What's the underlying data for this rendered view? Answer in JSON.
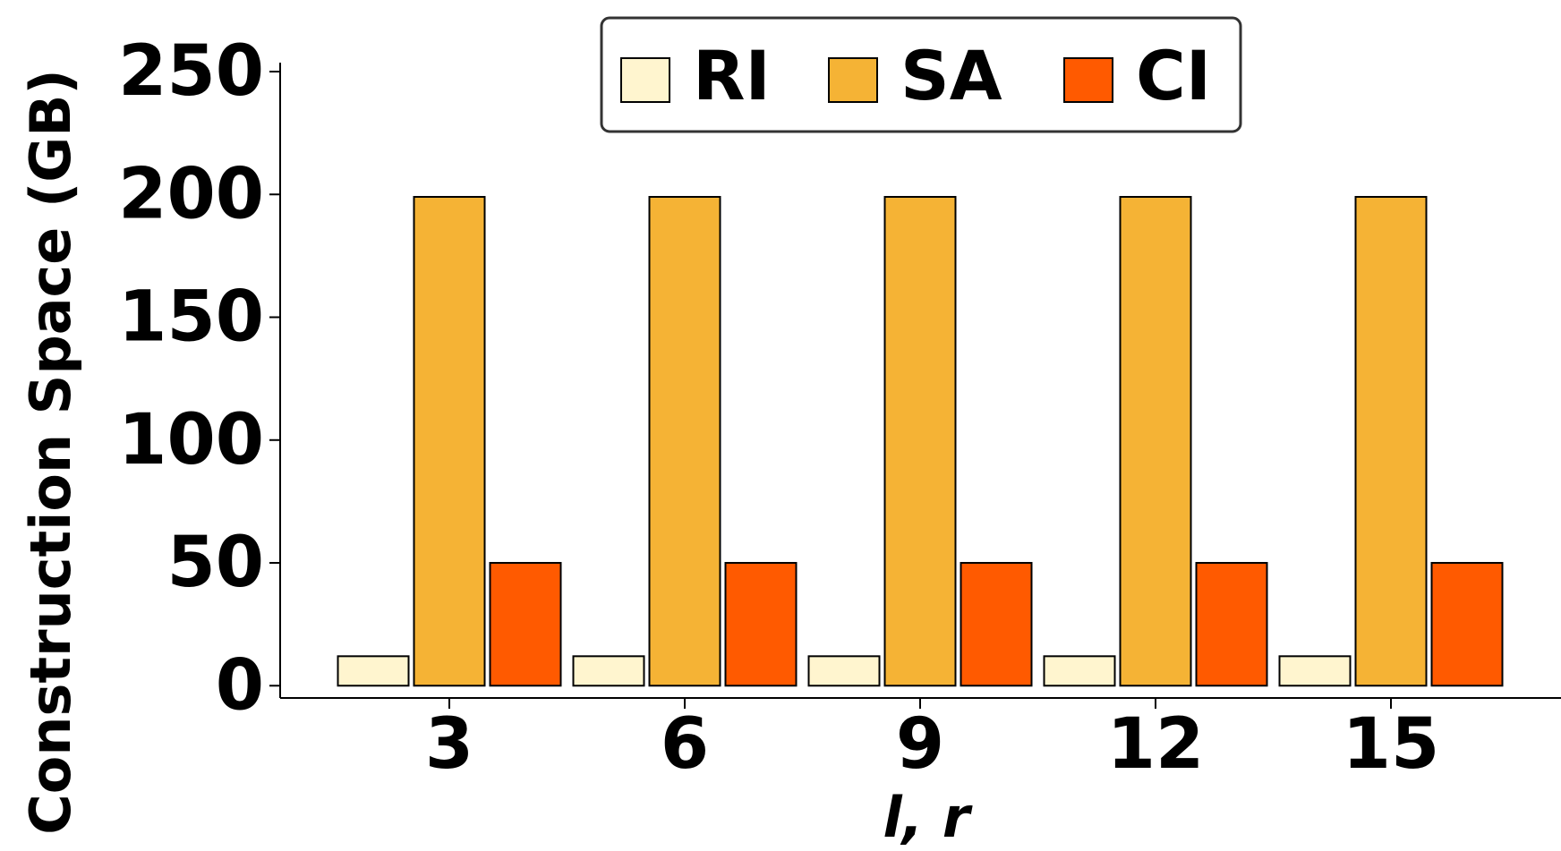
{
  "chart_data": {
    "type": "bar",
    "title": "",
    "xlabel": "l, r",
    "ylabel": "Construction Space (GB)",
    "categories": [
      "3",
      "6",
      "9",
      "12",
      "15"
    ],
    "series": [
      {
        "name": "RI",
        "color": "#fff5cf",
        "values": [
          12,
          12,
          12,
          12,
          12
        ]
      },
      {
        "name": "SA",
        "color": "#f5b335",
        "values": [
          199,
          199,
          199,
          199,
          199
        ]
      },
      {
        "name": "CI",
        "color": "#ff5a00",
        "values": [
          50,
          50,
          50,
          50,
          50
        ]
      }
    ],
    "ylim": [
      -5,
      250
    ],
    "yticks": [
      "0",
      "50",
      "100",
      "150",
      "200",
      "250"
    ],
    "ytick_values": [
      0,
      50,
      100,
      150,
      200,
      250
    ],
    "grid": false,
    "legend_position": "top-center"
  }
}
